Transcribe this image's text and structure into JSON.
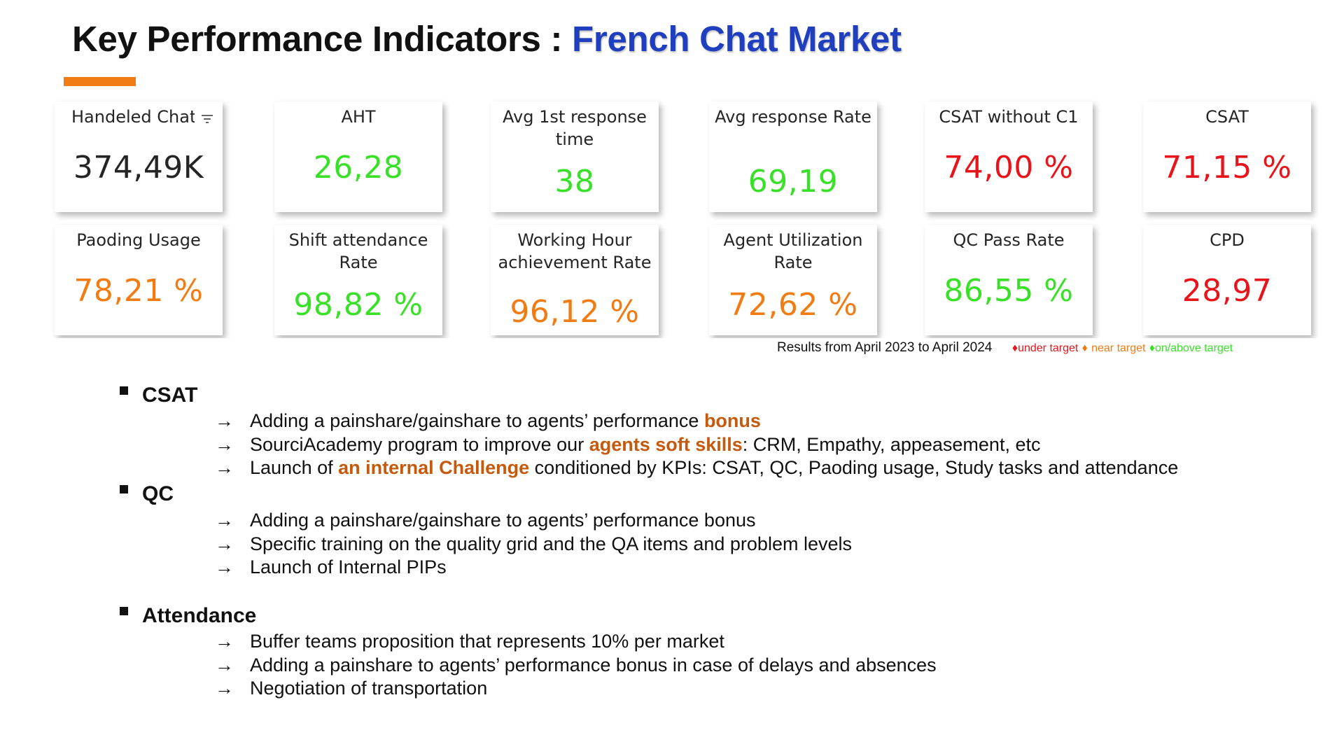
{
  "title": {
    "prefix": "Key Performance Indicators : ",
    "accent": "French Chat Market"
  },
  "colors": {
    "green": "#39e028",
    "red": "#e8141b",
    "orange": "#f07c13",
    "dark": "#252525",
    "highlight": "#c55a0d",
    "title_accent": "#1f3fbf"
  },
  "kpis": [
    {
      "label": "Handeled Chat",
      "value": "374,49K",
      "status": "neutral"
    },
    {
      "label": "AHT",
      "value": "26,28",
      "status": "green"
    },
    {
      "label": "Avg 1st response time",
      "value": "38",
      "status": "green"
    },
    {
      "label": "Avg response Rate",
      "value": "69,19",
      "status": "green"
    },
    {
      "label": "CSAT without C1",
      "value": "74,00 %",
      "status": "red"
    },
    {
      "label": "CSAT",
      "value": "71,15 %",
      "status": "red"
    },
    {
      "label": "Paoding Usage",
      "value": "78,21 %",
      "status": "orange"
    },
    {
      "label": "Shift attendance Rate",
      "value": "98,82 %",
      "status": "green"
    },
    {
      "label": "Working Hour achievement Rate",
      "value": "96,12 %",
      "status": "orange"
    },
    {
      "label": "Agent Utilization Rate",
      "value": "72,62 %",
      "status": "orange"
    },
    {
      "label": "QC Pass Rate",
      "value": "86,55 %",
      "status": "green"
    },
    {
      "label": "CPD",
      "value": "28,97",
      "status": "red"
    }
  ],
  "legend": {
    "results": "Results from April 2023 to April 2024",
    "under": "under target",
    "near": "near target",
    "above": "on/above target",
    "marker": "♦"
  },
  "sections": [
    {
      "heading": "CSAT",
      "items": [
        {
          "parts": [
            "Adding a painshare/gainshare to agents’ performance ",
            "bonus",
            ""
          ]
        },
        {
          "parts": [
            "SourciAcademy program to improve our ",
            "agents soft skills",
            ": CRM, Empathy, appeasement, etc"
          ]
        },
        {
          "parts": [
            "Launch of ",
            "an internal Challenge",
            " conditioned by KPIs: CSAT, QC, Paoding usage, Study tasks and attendance"
          ]
        }
      ]
    },
    {
      "heading": "QC",
      "items": [
        {
          "parts": [
            "Adding a painshare/gainshare to agents’ performance bonus",
            "",
            ""
          ]
        },
        {
          "parts": [
            "Specific training on the quality grid and the QA items and problem levels",
            "",
            ""
          ]
        },
        {
          "parts": [
            "Launch of Internal PIPs",
            "",
            ""
          ]
        }
      ]
    },
    {
      "heading": "Attendance",
      "items": [
        {
          "parts": [
            "Buffer teams proposition that represents 10% per market",
            "",
            ""
          ]
        },
        {
          "parts": [
            "Adding a painshare to agents’ performance bonus in case of delays and absences",
            "",
            ""
          ]
        },
        {
          "parts": [
            "Negotiation of transportation",
            "",
            ""
          ]
        }
      ]
    }
  ],
  "arrow": "→",
  "icons": {
    "filter": "filter-icon",
    "bullet": "square-bullet-icon",
    "arrow": "arrow-right-icon"
  }
}
